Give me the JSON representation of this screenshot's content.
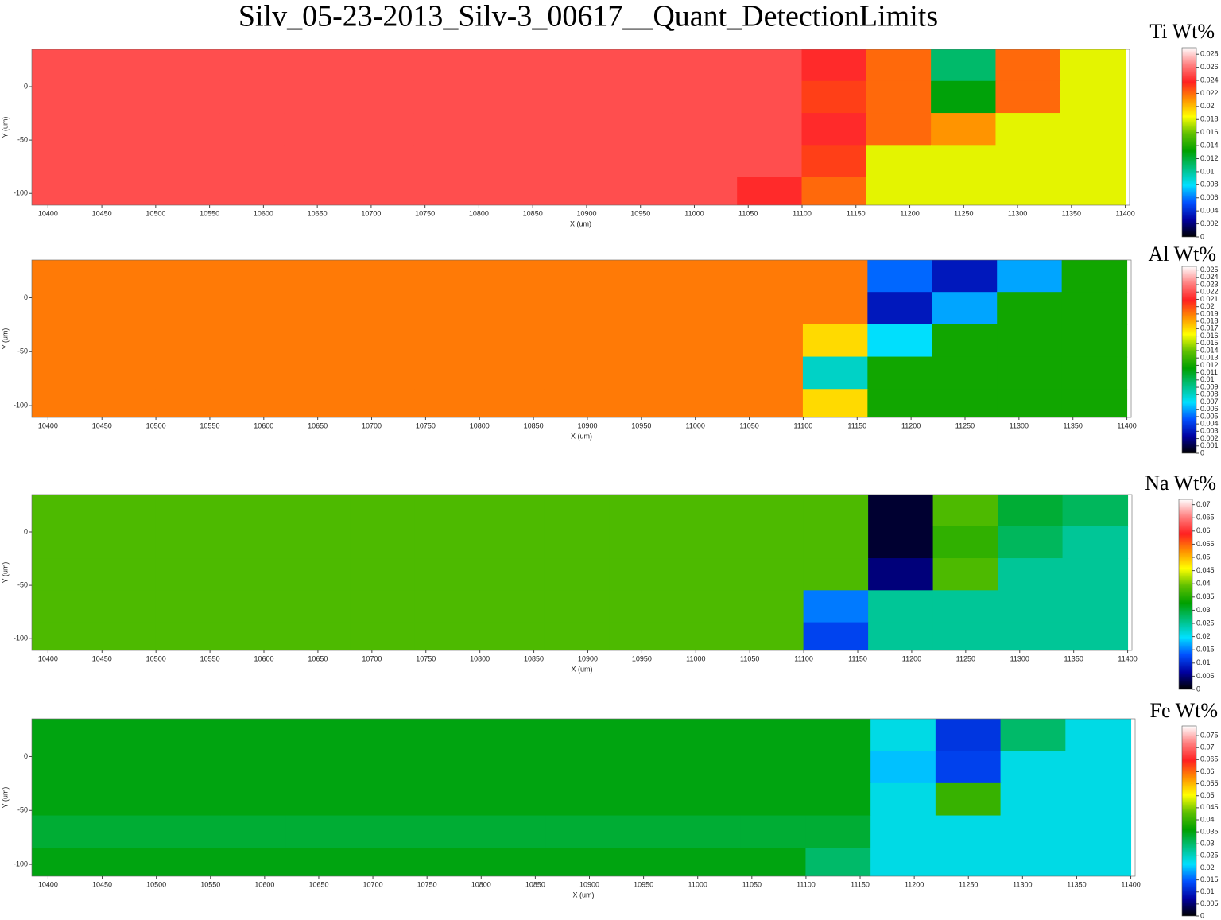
{
  "title": "Silv_05-23-2013_Silv-3_00617__Quant_DetectionLimits",
  "chart_data": [
    {
      "type": "heatmap",
      "colorbar_label": "Ti Wt%",
      "xlabel": "X (um)",
      "ylabel": "Y (um)",
      "x": [
        10410,
        10470,
        10530,
        10590,
        10650,
        10710,
        10770,
        10830,
        10890,
        10950,
        11010,
        11070,
        11130,
        11190,
        11250,
        11310,
        11370
      ],
      "y": [
        20,
        -10,
        -40,
        -70,
        -100
      ],
      "z": [
        [
          0.025,
          0.025,
          0.025,
          0.025,
          0.025,
          0.025,
          0.025,
          0.025,
          0.025,
          0.025,
          0.025,
          0.025,
          0.024,
          0.022,
          0.011,
          0.022,
          0.018
        ],
        [
          0.025,
          0.025,
          0.025,
          0.025,
          0.025,
          0.025,
          0.025,
          0.025,
          0.025,
          0.025,
          0.025,
          0.025,
          0.023,
          0.022,
          0.013,
          0.022,
          0.018
        ],
        [
          0.025,
          0.025,
          0.025,
          0.025,
          0.025,
          0.025,
          0.025,
          0.025,
          0.025,
          0.025,
          0.025,
          0.025,
          0.024,
          0.022,
          0.021,
          0.018,
          0.018
        ],
        [
          0.025,
          0.025,
          0.025,
          0.025,
          0.025,
          0.025,
          0.025,
          0.025,
          0.025,
          0.025,
          0.025,
          0.025,
          0.023,
          0.018,
          0.018,
          0.018,
          0.018
        ],
        [
          0.025,
          0.025,
          0.025,
          0.025,
          0.025,
          0.025,
          0.025,
          0.025,
          0.025,
          0.025,
          0.025,
          0.024,
          0.022,
          0.018,
          0.018,
          0.018,
          0.018
        ]
      ],
      "xlim": [
        10385,
        11404
      ],
      "ylim": [
        -111,
        35
      ],
      "xticks": [
        10400,
        10450,
        10500,
        10550,
        10600,
        10650,
        10700,
        10750,
        10800,
        10850,
        10900,
        10950,
        11000,
        11050,
        11100,
        11150,
        11200,
        11250,
        11300,
        11350,
        11400
      ],
      "yticks": [
        0,
        -50,
        -100
      ],
      "zlim": [
        0,
        0.029
      ],
      "zticks": [
        0,
        0.002,
        0.004,
        0.006,
        0.008,
        0.01,
        0.012,
        0.014,
        0.016,
        0.018,
        0.02,
        0.022,
        0.024,
        0.026,
        0.028
      ],
      "colormap": [
        "#000000",
        "#0000a0",
        "#0050ff",
        "#00e0ff",
        "#00c080",
        "#00a000",
        "#60c000",
        "#ffff00",
        "#ff9000",
        "#ff2020",
        "#ff8080",
        "#ffffff"
      ]
    },
    {
      "type": "heatmap",
      "colorbar_label": "Al Wt%",
      "xlabel": "X (um)",
      "ylabel": "Y (um)",
      "x": [
        10410,
        10470,
        10530,
        10590,
        10650,
        10710,
        10770,
        10830,
        10890,
        10950,
        11010,
        11070,
        11130,
        11190,
        11250,
        11310,
        11370
      ],
      "y": [
        20,
        -10,
        -40,
        -70,
        -100
      ],
      "z": [
        [
          0.019,
          0.019,
          0.019,
          0.019,
          0.019,
          0.019,
          0.019,
          0.019,
          0.019,
          0.019,
          0.019,
          0.019,
          0.019,
          0.005,
          0.003,
          0.006,
          0.012
        ],
        [
          0.019,
          0.019,
          0.019,
          0.019,
          0.019,
          0.019,
          0.019,
          0.019,
          0.019,
          0.019,
          0.019,
          0.019,
          0.019,
          0.003,
          0.006,
          0.012,
          0.012
        ],
        [
          0.019,
          0.019,
          0.019,
          0.019,
          0.019,
          0.019,
          0.019,
          0.019,
          0.019,
          0.019,
          0.019,
          0.019,
          0.017,
          0.007,
          0.012,
          0.012,
          0.012
        ],
        [
          0.019,
          0.019,
          0.019,
          0.019,
          0.019,
          0.019,
          0.019,
          0.019,
          0.019,
          0.019,
          0.019,
          0.019,
          0.008,
          0.012,
          0.012,
          0.012,
          0.012
        ],
        [
          0.019,
          0.019,
          0.019,
          0.019,
          0.019,
          0.019,
          0.019,
          0.019,
          0.019,
          0.019,
          0.019,
          0.019,
          0.017,
          0.012,
          0.012,
          0.012,
          0.012
        ]
      ],
      "xlim": [
        10385,
        11404
      ],
      "ylim": [
        -111,
        35
      ],
      "xticks": [
        10400,
        10450,
        10500,
        10550,
        10600,
        10650,
        10700,
        10750,
        10800,
        10850,
        10900,
        10950,
        11000,
        11050,
        11100,
        11150,
        11200,
        11250,
        11300,
        11350,
        11400
      ],
      "yticks": [
        0,
        -50,
        -100
      ],
      "zlim": [
        0,
        0.0255
      ],
      "zticks": [
        0,
        0.001,
        0.002,
        0.003,
        0.004,
        0.005,
        0.006,
        0.007,
        0.008,
        0.009,
        0.01,
        0.011,
        0.012,
        0.013,
        0.014,
        0.015,
        0.016,
        0.017,
        0.018,
        0.019,
        0.02,
        0.021,
        0.022,
        0.023,
        0.024,
        0.025
      ],
      "colormap": [
        "#000000",
        "#0000a0",
        "#0050ff",
        "#00e0ff",
        "#00c080",
        "#00a000",
        "#60c000",
        "#ffff00",
        "#ff9000",
        "#ff2020",
        "#ff8080",
        "#ffffff"
      ]
    },
    {
      "type": "heatmap",
      "colorbar_label": "Na Wt%",
      "xlabel": "X (um)",
      "ylabel": "Y (um)",
      "x": [
        10410,
        10470,
        10530,
        10590,
        10650,
        10710,
        10770,
        10830,
        10890,
        10950,
        11010,
        11070,
        11130,
        11190,
        11250,
        11310,
        11370
      ],
      "y": [
        20,
        -10,
        -40,
        -70,
        -100
      ],
      "z": [
        [
          0.038,
          0.038,
          0.038,
          0.038,
          0.038,
          0.038,
          0.038,
          0.038,
          0.038,
          0.038,
          0.038,
          0.038,
          0.038,
          0.002,
          0.038,
          0.03,
          0.028
        ],
        [
          0.038,
          0.038,
          0.038,
          0.038,
          0.038,
          0.038,
          0.038,
          0.038,
          0.038,
          0.038,
          0.038,
          0.038,
          0.038,
          0.002,
          0.036,
          0.028,
          0.025
        ],
        [
          0.038,
          0.038,
          0.038,
          0.038,
          0.038,
          0.038,
          0.038,
          0.038,
          0.038,
          0.038,
          0.038,
          0.038,
          0.038,
          0.005,
          0.038,
          0.025,
          0.025
        ],
        [
          0.038,
          0.038,
          0.038,
          0.038,
          0.038,
          0.038,
          0.038,
          0.038,
          0.038,
          0.038,
          0.038,
          0.038,
          0.015,
          0.025,
          0.025,
          0.025,
          0.025
        ],
        [
          0.038,
          0.038,
          0.038,
          0.038,
          0.038,
          0.038,
          0.038,
          0.038,
          0.038,
          0.038,
          0.038,
          0.038,
          0.012,
          0.025,
          0.025,
          0.025,
          0.025
        ]
      ],
      "xlim": [
        10385,
        11404
      ],
      "ylim": [
        -111,
        35
      ],
      "xticks": [
        10400,
        10450,
        10500,
        10550,
        10600,
        10650,
        10700,
        10750,
        10800,
        10850,
        10900,
        10950,
        11000,
        11050,
        11100,
        11150,
        11200,
        11250,
        11300,
        11350,
        11400
      ],
      "yticks": [
        0,
        -50,
        -100
      ],
      "zlim": [
        0,
        0.072
      ],
      "zticks": [
        0,
        0.005,
        0.01,
        0.015,
        0.02,
        0.025,
        0.03,
        0.035,
        0.04,
        0.045,
        0.05,
        0.055,
        0.06,
        0.065,
        0.07
      ],
      "colormap": [
        "#000000",
        "#0000a0",
        "#0050ff",
        "#00e0ff",
        "#00c080",
        "#00a000",
        "#60c000",
        "#ffff00",
        "#ff9000",
        "#ff2020",
        "#ff8080",
        "#ffffff"
      ]
    },
    {
      "type": "heatmap",
      "colorbar_label": "Fe Wt%",
      "xlabel": "X (um)",
      "ylabel": "Y (um)",
      "x": [
        10410,
        10470,
        10530,
        10590,
        10650,
        10710,
        10770,
        10830,
        10890,
        10950,
        11010,
        11070,
        11130,
        11190,
        11250,
        11310,
        11370
      ],
      "y": [
        20,
        -10,
        -40,
        -70,
        -100
      ],
      "z": [
        [
          0.035,
          0.035,
          0.035,
          0.035,
          0.035,
          0.035,
          0.035,
          0.035,
          0.035,
          0.035,
          0.035,
          0.035,
          0.035,
          0.023,
          0.012,
          0.03,
          0.023
        ],
        [
          0.035,
          0.035,
          0.035,
          0.035,
          0.035,
          0.035,
          0.035,
          0.035,
          0.035,
          0.035,
          0.035,
          0.035,
          0.035,
          0.02,
          0.013,
          0.023,
          0.023
        ],
        [
          0.035,
          0.035,
          0.035,
          0.035,
          0.035,
          0.035,
          0.035,
          0.035,
          0.035,
          0.035,
          0.035,
          0.035,
          0.035,
          0.023,
          0.04,
          0.023,
          0.023
        ],
        [
          0.033,
          0.033,
          0.033,
          0.033,
          0.033,
          0.033,
          0.033,
          0.033,
          0.033,
          0.033,
          0.033,
          0.033,
          0.033,
          0.023,
          0.023,
          0.023,
          0.023
        ],
        [
          0.035,
          0.035,
          0.035,
          0.035,
          0.035,
          0.035,
          0.035,
          0.035,
          0.035,
          0.035,
          0.035,
          0.035,
          0.03,
          0.023,
          0.023,
          0.023,
          0.023
        ]
      ],
      "xlim": [
        10385,
        11404
      ],
      "ylim": [
        -111,
        35
      ],
      "xticks": [
        10400,
        10450,
        10500,
        10550,
        10600,
        10650,
        10700,
        10750,
        10800,
        10850,
        10900,
        10950,
        11000,
        11050,
        11100,
        11150,
        11200,
        11250,
        11300,
        11350,
        11400
      ],
      "yticks": [
        0,
        -50,
        -100
      ],
      "zlim": [
        0,
        0.079
      ],
      "zticks": [
        0,
        0.005,
        0.01,
        0.015,
        0.02,
        0.025,
        0.03,
        0.035,
        0.04,
        0.045,
        0.05,
        0.055,
        0.06,
        0.065,
        0.07,
        0.075
      ],
      "colormap": [
        "#000000",
        "#0000a0",
        "#0050ff",
        "#00e0ff",
        "#00c080",
        "#00a000",
        "#60c000",
        "#ffff00",
        "#ff9000",
        "#ff2020",
        "#ff8080",
        "#ffffff"
      ]
    }
  ]
}
